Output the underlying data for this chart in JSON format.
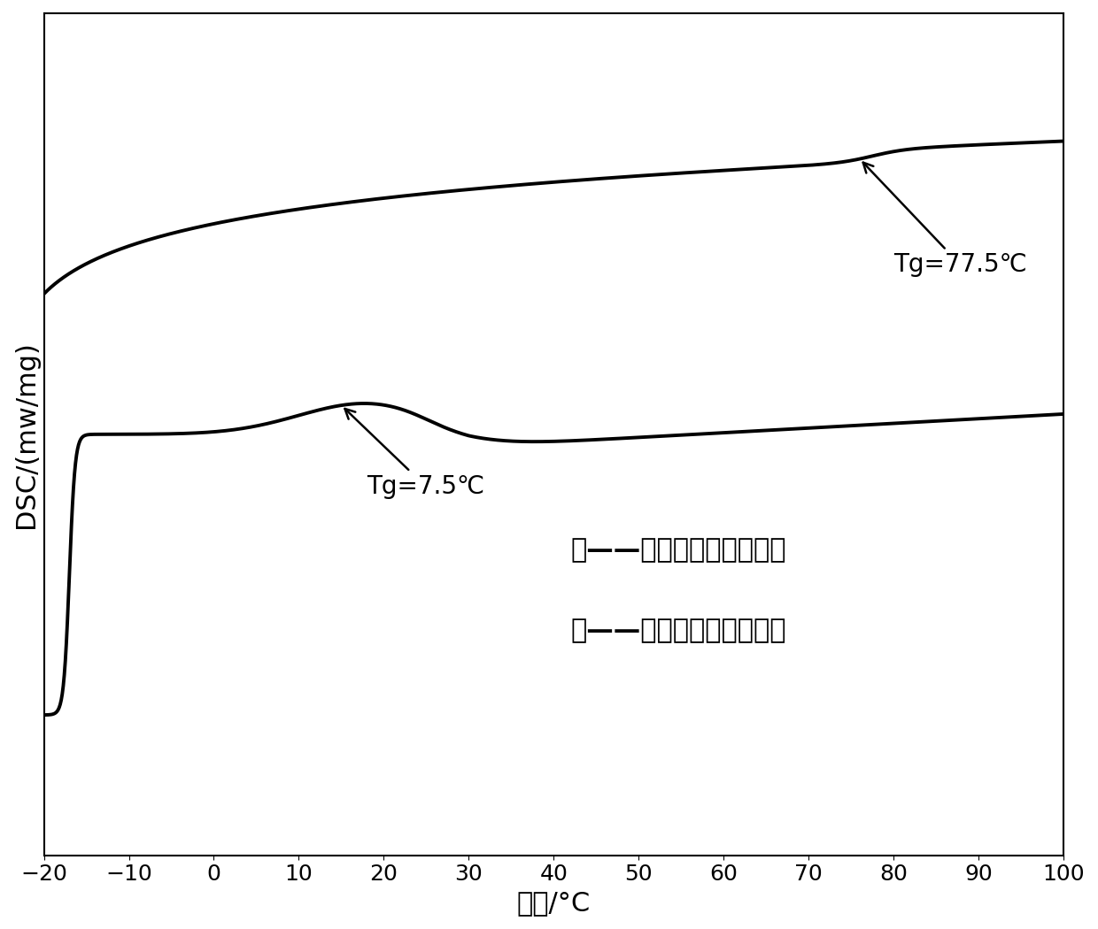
{
  "xlabel": "温度/°C",
  "ylabel": "DSC/(mw/mg)",
  "xlim": [
    -20,
    100
  ],
  "ylim": [
    -1.5,
    1.2
  ],
  "background_color": "#ffffff",
  "line_color": "#000000",
  "line_width": 2.8,
  "annotation_upper": "Tg=77.5℃",
  "annotation_lower": "Tg=7.5℃",
  "legend_upper": "上——核层丙烯酸酯共聚物",
  "legend_lower": "下——壳层丙烯酸酯共聚物",
  "xlabel_fontsize": 22,
  "ylabel_fontsize": 22,
  "tick_fontsize": 18,
  "annotation_fontsize": 20,
  "legend_fontsize": 22
}
